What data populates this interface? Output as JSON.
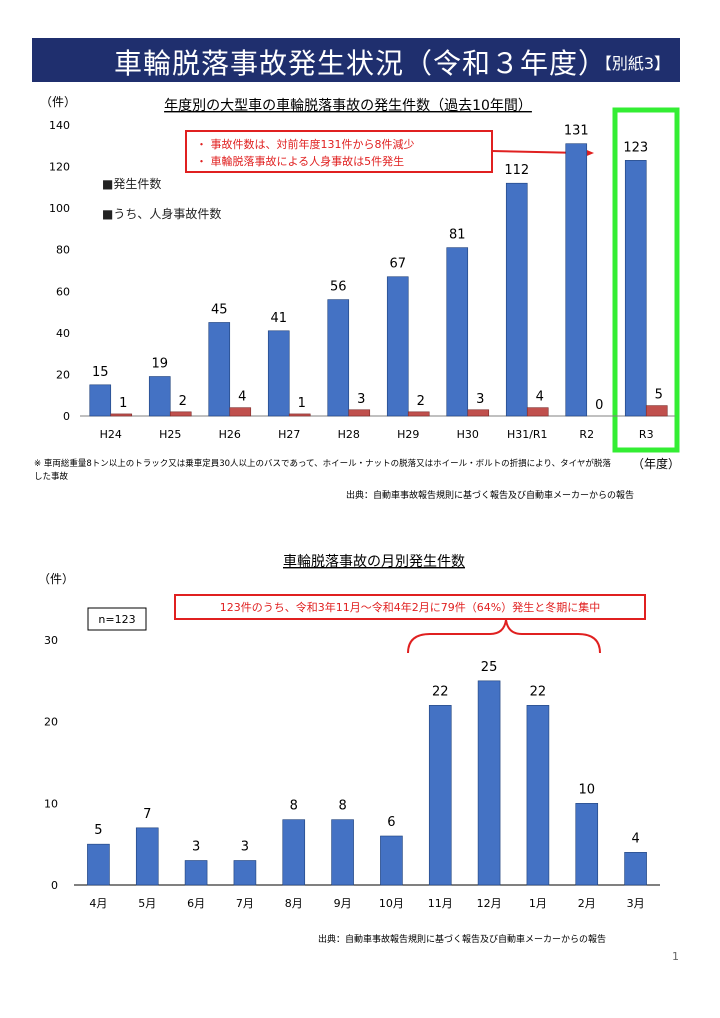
{
  "header": {
    "title": "車輪脱落事故発生状況（令和３年度）",
    "tag": "【別紙3】"
  },
  "chart1": {
    "unit": "（件）",
    "xunit": "（年度）",
    "legend_total": "■発生件数",
    "legend_injury": "■うち、人身事故件数",
    "callout_lines": [
      "・ 事故件数は、対前年度131件から8件減少",
      "・ 車輪脱落事故による人身事故は5件発生"
    ],
    "note": "※ 車両総重量8トン以上のトラック又は乗車定員30人以上のバスであって、ホイール・ナットの脱落又はホイール・ボルトの折損により、タイヤが脱落した事故",
    "source": "出典：自動車事故報告規則に基づく報告及び自動車メーカーからの報告"
  },
  "chart2": {
    "unit": "（件）",
    "n_label": "n=123",
    "callout": "123件のうち、令和3年11月～令和4年2月に79件（64%）発生と冬期に集中",
    "source": "出典：自動車事故報告規則に基づく報告及び自動車メーカーからの報告"
  },
  "page_number": "1",
  "colors": {
    "bar_blue": "#4472c4",
    "bar_red": "#c0504d",
    "callout": "#e02020",
    "highlight": "#33ee33",
    "header_bg": "#1f2f6e"
  },
  "chart_data": [
    {
      "type": "bar",
      "title": "年度別の大型車の車輪脱落事故の発生件数（過去10年間）",
      "categories": [
        "H24",
        "H25",
        "H26",
        "H27",
        "H28",
        "H29",
        "H30",
        "H31/R1",
        "R2",
        "R3"
      ],
      "series": [
        {
          "name": "発生件数",
          "values": [
            15,
            19,
            45,
            41,
            56,
            67,
            81,
            112,
            131,
            123
          ]
        },
        {
          "name": "うち、人身事故件数",
          "values": [
            1,
            2,
            4,
            1,
            3,
            2,
            3,
            4,
            0,
            5
          ]
        }
      ],
      "ylim": [
        0,
        140
      ],
      "yticks": [
        0,
        20,
        40,
        60,
        80,
        100,
        120,
        140
      ],
      "grid": false,
      "legend": "top-left"
    },
    {
      "type": "bar",
      "title": "車輪脱落事故の月別発生件数",
      "categories": [
        "4月",
        "5月",
        "6月",
        "7月",
        "8月",
        "9月",
        "10月",
        "11月",
        "12月",
        "1月",
        "2月",
        "3月"
      ],
      "values": [
        5,
        7,
        3,
        3,
        8,
        8,
        6,
        22,
        25,
        22,
        10,
        4
      ],
      "ylim": [
        0,
        30
      ],
      "yticks": [
        0,
        10,
        20,
        30
      ],
      "grid": false
    }
  ]
}
